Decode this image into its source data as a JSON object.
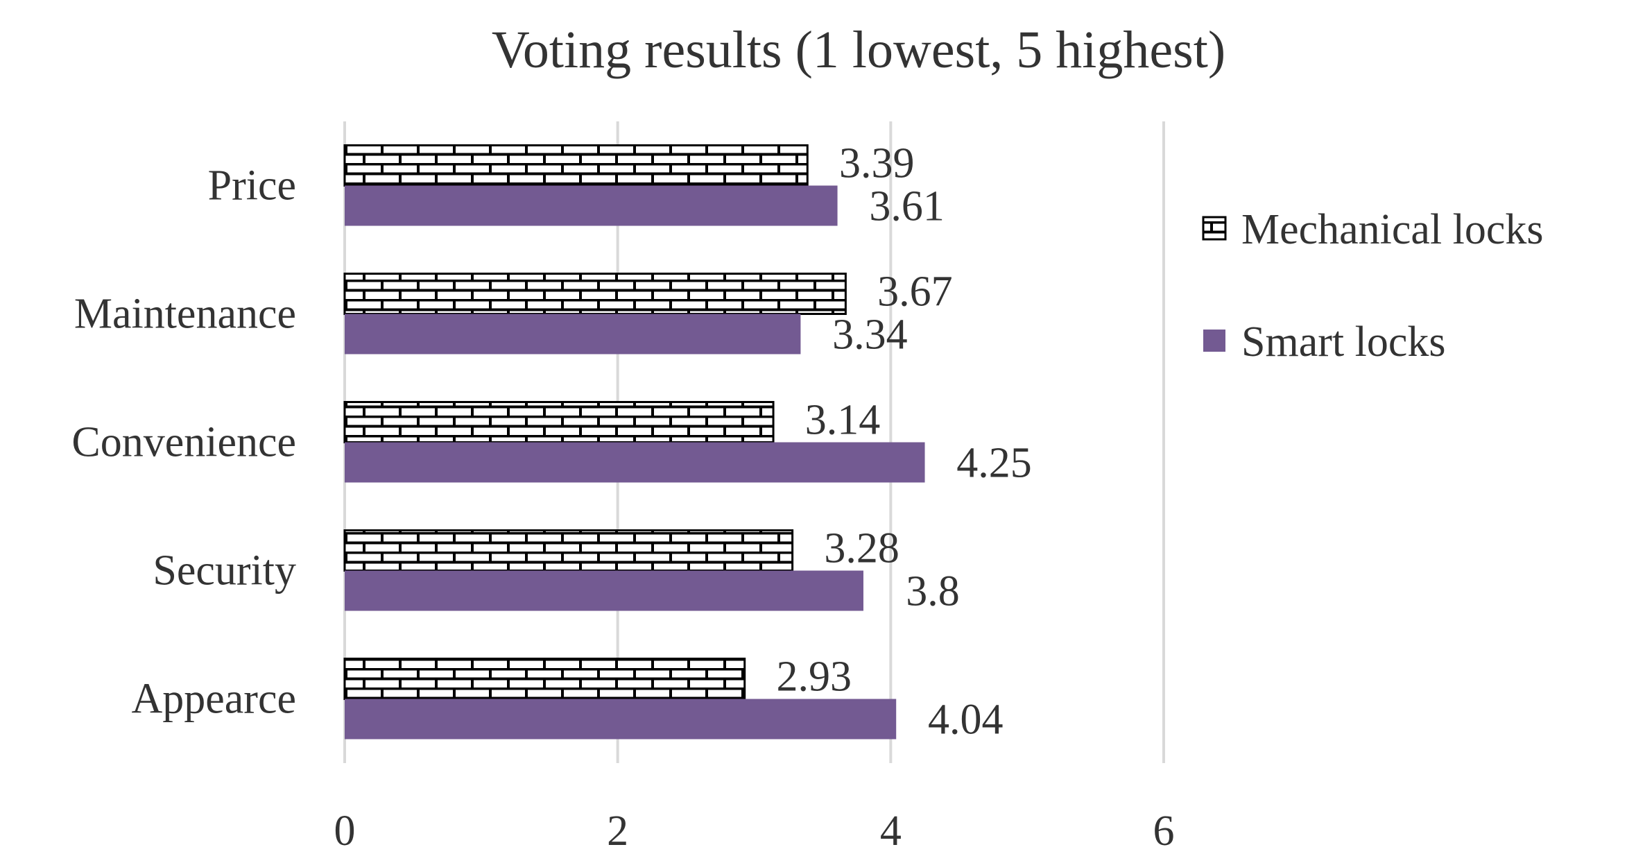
{
  "chart_data": {
    "type": "bar",
    "orientation": "horizontal",
    "title": "Voting results (1 lowest, 5 highest)",
    "categories": [
      "Price",
      "Maintenance",
      "Convenience",
      "Security",
      "Appearce"
    ],
    "series": [
      {
        "name": "Mechanical locks",
        "values": [
          3.39,
          3.67,
          3.14,
          3.28,
          2.93
        ],
        "labels": [
          "3.39",
          "3.67",
          "3.14",
          "3.28",
          "2.93"
        ],
        "fill": "brick-pattern",
        "color": "#000000"
      },
      {
        "name": "Smart locks",
        "values": [
          3.61,
          3.34,
          4.25,
          3.8,
          4.04
        ],
        "labels": [
          "3.61",
          "3.34",
          "4.25",
          "3.8",
          "4.04"
        ],
        "fill": "solid",
        "color": "#735a92"
      }
    ],
    "xlim": [
      0,
      6
    ],
    "xticks": [
      0,
      2,
      4,
      6
    ],
    "xtick_labels": [
      "0",
      "2",
      "4",
      "6"
    ],
    "grid": true,
    "grid_color": "#d9d9d9",
    "legend_position": "right",
    "xlabel": "",
    "ylabel": ""
  }
}
